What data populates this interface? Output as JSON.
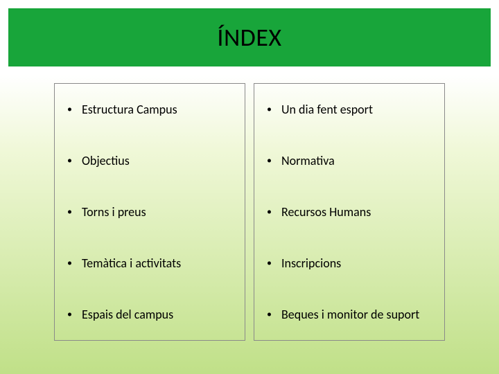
{
  "header": {
    "title": "ÍNDEX",
    "background_color": "#18a53a",
    "title_color": "#000000",
    "title_fontsize": 36
  },
  "background": {
    "gradient_top": "#ffffff",
    "gradient_mid": "#d8ecb0",
    "gradient_bottom": "#c0e088"
  },
  "index": {
    "border_color": "#8a8a8a",
    "text_color": "#000000",
    "item_fontsize": 18,
    "bullet": "•",
    "left_column": [
      "Estructura Campus",
      "Objectius",
      "Torns i preus",
      "Temàtica i activitats",
      "Espais del campus"
    ],
    "right_column": [
      "Un dia fent esport",
      "Normativa",
      "Recursos Humans",
      "Inscripcions",
      "Beques i monitor de suport"
    ]
  }
}
